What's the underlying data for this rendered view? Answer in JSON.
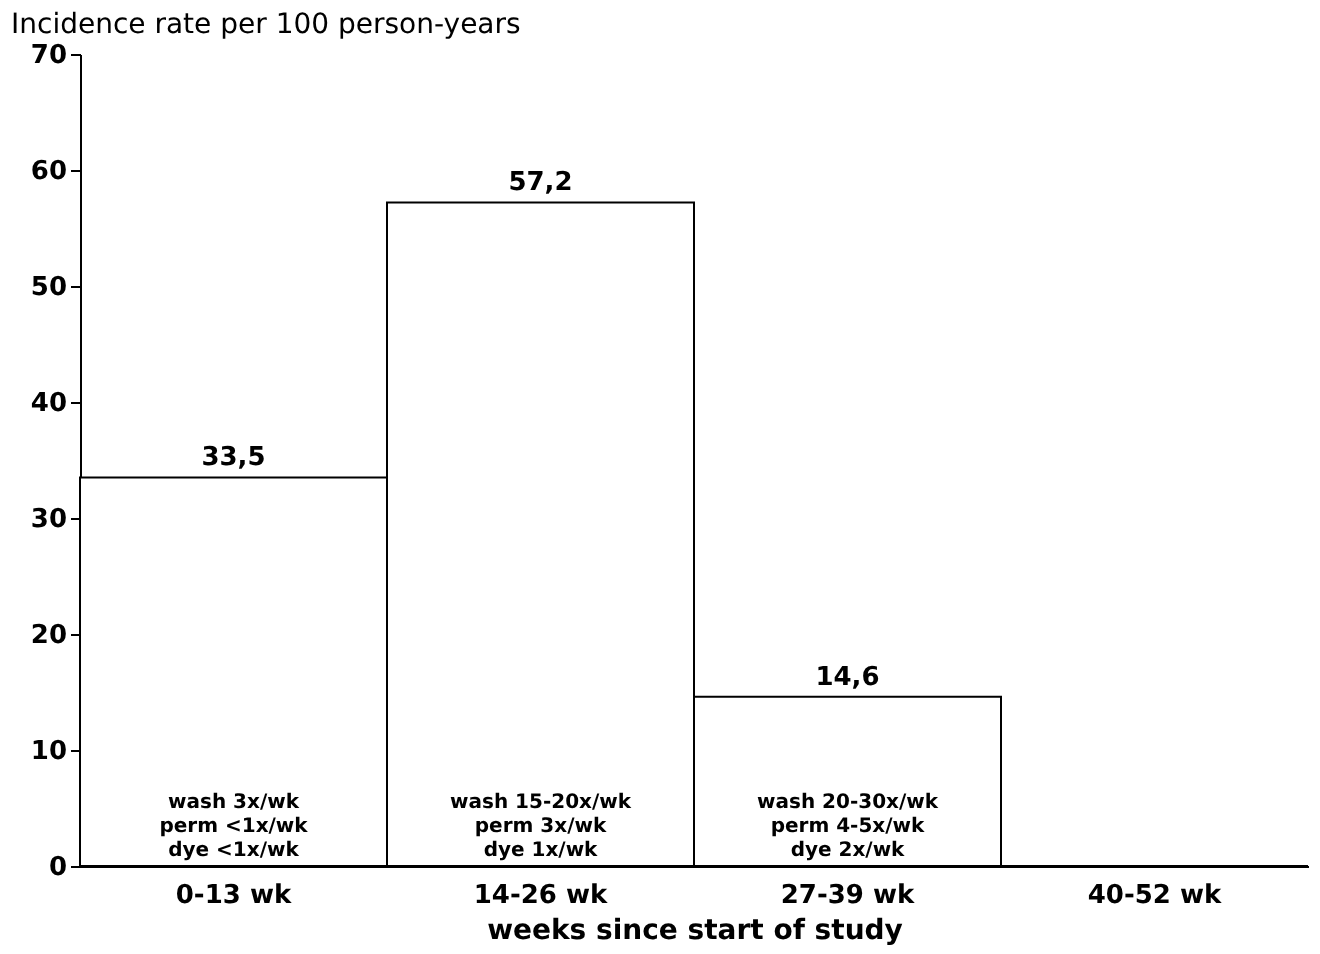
{
  "chart_data": {
    "type": "bar",
    "ylabel": "Incidence rate per 100 person-years",
    "xlabel": "weeks since start of study",
    "categories": [
      "0-13 wk",
      "14-26 wk",
      "27-39 wk",
      "40-52 wk"
    ],
    "values": [
      33.5,
      57.2,
      14.6,
      0
    ],
    "color": "#ffffff",
    "value_labels": [
      "33,5",
      "57,2",
      "14,6",
      null
    ],
    "ylim": [
      0,
      70
    ],
    "yticks": [
      0,
      10,
      20,
      30,
      40,
      50,
      60,
      70
    ],
    "grid": false,
    "annotations": [
      "wash 3x/wk\nperm <1x/wk\ndye <1x/wk",
      "wash 15-20x/wk\nperm 3x/wk\ndye 1x/wk",
      "wash 20-30x/wk\nperm 4-5x/wk\ndye 2x/wk"
    ]
  }
}
